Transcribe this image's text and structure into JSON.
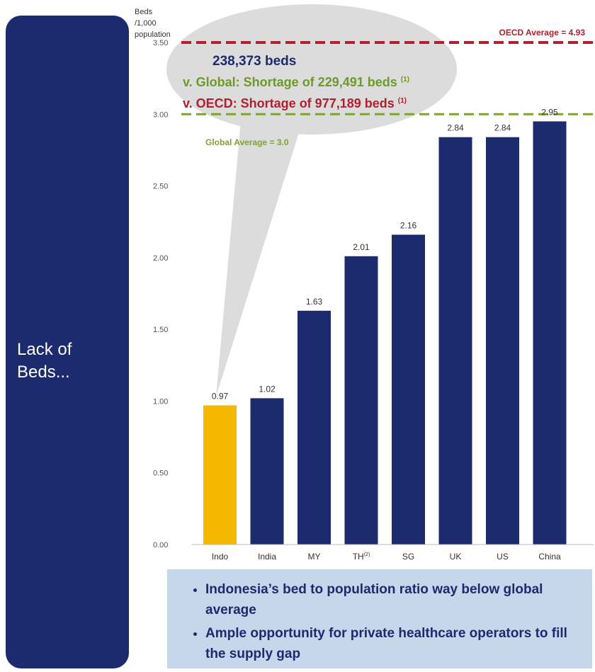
{
  "sidebar": {
    "title": "Lack of\nBeds..."
  },
  "callout": {
    "beds": "238,373 beds",
    "global_shortage": "v. Global: Shortage of 229,491 beds",
    "global_note": "(1)",
    "oecd_shortage": "v. OECD: Shortage of 977,189 beds",
    "oecd_note": "(1)"
  },
  "bullets": [
    "Indonesia’s bed to population ratio way below global average",
    "Ample opportunity for private healthcare operators to fill the supply gap"
  ],
  "colors": {
    "navy": "#1c2a6e",
    "highlight": "#f5b800",
    "oecd": "#b0202e",
    "global": "#7fa32e",
    "bubble": "#dcdcdc",
    "box": "#c6d6eb"
  },
  "chart_data": {
    "type": "bar",
    "ylabel": "Beds /1,000 population",
    "ylim": [
      0,
      3.5
    ],
    "yticks": [
      "0.00",
      "0.50",
      "1.00",
      "1.50",
      "2.00",
      "2.50",
      "3.00",
      "3.50"
    ],
    "categories": [
      "Indo",
      "India",
      "MY",
      "TH",
      "SG",
      "UK",
      "US",
      "China"
    ],
    "category_superscripts": [
      "",
      "",
      "",
      "(2)",
      "",
      "",
      "",
      ""
    ],
    "values": [
      0.97,
      1.02,
      1.63,
      2.01,
      2.16,
      2.84,
      2.84,
      2.95
    ],
    "value_labels": [
      "0.97",
      "1.02",
      "1.63",
      "2.01",
      "2.16",
      "2.84",
      "2.84",
      "2.95"
    ],
    "highlight_index": 0,
    "reference_lines": [
      {
        "label": "OECD Average = 4.93",
        "value": 3.5,
        "color": "#b0202e"
      },
      {
        "label": "Global Average = 3.0",
        "value": 3.0,
        "color": "#7fa32e"
      }
    ]
  }
}
